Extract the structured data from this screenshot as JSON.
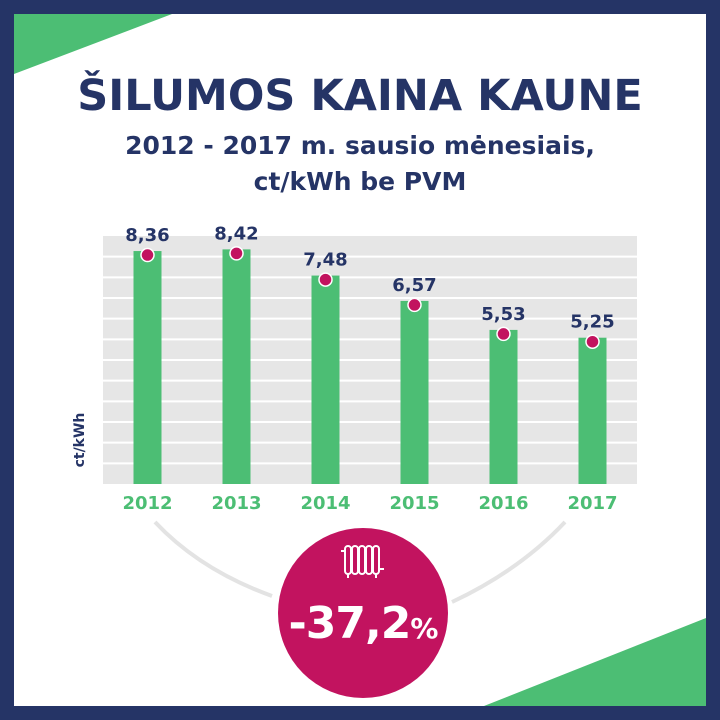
{
  "title": "ŠILUMOS KAINA KAUNE",
  "subtitle_line1": "2012 - 2017 m. sausio mėnesiais,",
  "subtitle_line2": "ct/kWh be PVM",
  "change": {
    "value": "-37,2",
    "unit": "%"
  },
  "icon": "radiator-icon",
  "colors": {
    "navy": "#253466",
    "green": "#4cbe74",
    "magenta": "#c2135f",
    "grid": "#e6e6e6"
  },
  "chart_data": {
    "type": "bar",
    "categories": [
      "2012",
      "2013",
      "2014",
      "2015",
      "2016",
      "2017"
    ],
    "values": [
      8.36,
      8.42,
      7.48,
      6.57,
      5.53,
      5.25
    ],
    "value_labels": [
      "8,36",
      "8,42",
      "7,48",
      "6,57",
      "5,53",
      "5,25"
    ],
    "ylabel": "ct/kWh",
    "ylim": [
      0,
      8.9
    ],
    "grid": true
  }
}
